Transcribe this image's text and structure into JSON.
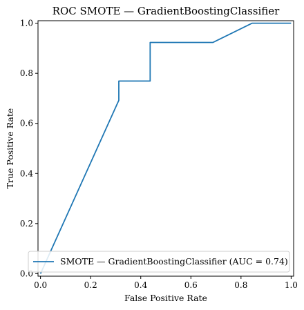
{
  "chart_data": {
    "type": "line",
    "title": "ROC SMOTE — GradientBoostingClassifier",
    "xlabel": "False Positive Rate",
    "ylabel": "True Positive Rate",
    "xlim": [
      -0.01,
      1.01
    ],
    "ylim": [
      -0.01,
      1.01
    ],
    "xticks": [
      0.0,
      0.2,
      0.4,
      0.6,
      0.8,
      1.0
    ],
    "xtick_labels": [
      "0.0",
      "0.2",
      "0.4",
      "0.6",
      "0.8",
      "1.0"
    ],
    "yticks": [
      0.0,
      0.2,
      0.4,
      0.6,
      0.8,
      1.0
    ],
    "ytick_labels": [
      "0.0",
      "0.2",
      "0.4",
      "0.6",
      "0.8",
      "1.0"
    ],
    "grid": false,
    "legend_position": "bottom-right",
    "series": [
      {
        "name": "SMOTE — GradientBoostingClassifier (AUC = 0.74)",
        "color": "#1f77b4",
        "x": [
          0.0,
          0.0,
          0.3125,
          0.3125,
          0.4375,
          0.4375,
          0.6875,
          0.84375,
          1.0
        ],
        "y": [
          0.0,
          0.0,
          0.6923,
          0.7692,
          0.7692,
          0.9231,
          0.9231,
          1.0,
          1.0
        ]
      }
    ]
  }
}
